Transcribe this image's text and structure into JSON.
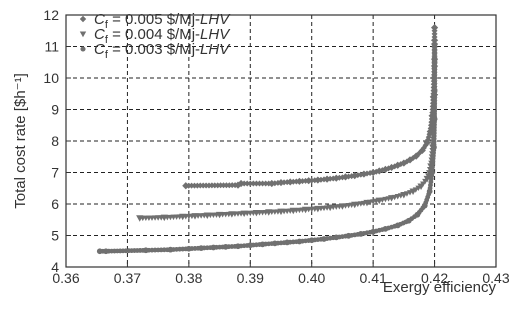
{
  "chart_data": {
    "type": "scatter",
    "xlabel": "Exergy efficiency",
    "ylabel": "Total cost rate [$h⁻¹]",
    "xlim": [
      0.36,
      0.43
    ],
    "ylim": [
      4,
      12
    ],
    "xticks": [
      {
        "v": 0.36,
        "label": "0.36"
      },
      {
        "v": 0.37,
        "label": "0.37"
      },
      {
        "v": 0.38,
        "label": "0.38"
      },
      {
        "v": 0.39,
        "label": "0.39"
      },
      {
        "v": 0.4,
        "label": "0.40"
      },
      {
        "v": 0.41,
        "label": "0.41"
      },
      {
        "v": 0.42,
        "label": "0.42"
      },
      {
        "v": 0.43,
        "label": "0.43"
      }
    ],
    "yticks": [
      {
        "v": 4,
        "label": "4"
      },
      {
        "v": 5,
        "label": "5"
      },
      {
        "v": 6,
        "label": "6"
      },
      {
        "v": 7,
        "label": "7"
      },
      {
        "v": 8,
        "label": "8"
      },
      {
        "v": 9,
        "label": "9"
      },
      {
        "v": 10,
        "label": "10"
      },
      {
        "v": 11,
        "label": "11"
      },
      {
        "v": 12,
        "label": "12"
      }
    ],
    "grid": true,
    "legend_position": "top-left",
    "marker_color": "#707070",
    "series": [
      {
        "name": "C_f = 0.005 $/Mj-LHV",
        "legend_sub": "f",
        "legend_rest": " = 0.005 $/Mj-",
        "legend_italic": "LHV",
        "marker": "diamond",
        "points": [
          [
            0.3795,
            6.58
          ],
          [
            0.388,
            6.6
          ],
          [
            0.3885,
            6.65
          ],
          [
            0.3935,
            6.65
          ],
          [
            0.395,
            6.68
          ],
          [
            0.3965,
            6.7
          ],
          [
            0.398,
            6.72
          ],
          [
            0.3995,
            6.74
          ],
          [
            0.401,
            6.76
          ],
          [
            0.4025,
            6.79
          ],
          [
            0.404,
            6.82
          ],
          [
            0.4055,
            6.86
          ],
          [
            0.407,
            6.9
          ],
          [
            0.4085,
            6.95
          ],
          [
            0.41,
            7.0
          ],
          [
            0.411,
            7.05
          ],
          [
            0.412,
            7.1
          ],
          [
            0.413,
            7.16
          ],
          [
            0.414,
            7.23
          ],
          [
            0.415,
            7.3
          ],
          [
            0.416,
            7.4
          ],
          [
            0.417,
            7.52
          ],
          [
            0.418,
            7.7
          ],
          [
            0.4188,
            7.95
          ],
          [
            0.4193,
            8.3
          ],
          [
            0.4196,
            8.8
          ],
          [
            0.4198,
            9.4
          ],
          [
            0.4199,
            10.0
          ],
          [
            0.42,
            10.6
          ],
          [
            0.42,
            11.2
          ],
          [
            0.42,
            11.6
          ]
        ]
      },
      {
        "name": "C_f = 0.004 $/Mj-LHV",
        "legend_sub": "f",
        "legend_rest": " = 0.004 $/Mj-",
        "legend_italic": "LHV",
        "marker": "triangle-down",
        "points": [
          [
            0.372,
            5.55
          ],
          [
            0.376,
            5.57
          ],
          [
            0.379,
            5.6
          ],
          [
            0.381,
            5.62
          ],
          [
            0.383,
            5.64
          ],
          [
            0.385,
            5.66
          ],
          [
            0.387,
            5.68
          ],
          [
            0.389,
            5.7
          ],
          [
            0.391,
            5.72
          ],
          [
            0.393,
            5.74
          ],
          [
            0.395,
            5.76
          ],
          [
            0.397,
            5.79
          ],
          [
            0.399,
            5.82
          ],
          [
            0.401,
            5.85
          ],
          [
            0.403,
            5.89
          ],
          [
            0.405,
            5.93
          ],
          [
            0.407,
            5.98
          ],
          [
            0.409,
            6.04
          ],
          [
            0.411,
            6.11
          ],
          [
            0.413,
            6.19
          ],
          [
            0.415,
            6.29
          ],
          [
            0.4165,
            6.4
          ],
          [
            0.4178,
            6.56
          ],
          [
            0.4188,
            6.8
          ],
          [
            0.4194,
            7.2
          ],
          [
            0.4197,
            7.8
          ],
          [
            0.4199,
            8.6
          ],
          [
            0.42,
            9.4
          ],
          [
            0.42,
            10.3
          ],
          [
            0.42,
            11.0
          ]
        ]
      },
      {
        "name": "C_f = 0.003 $/Mj-LHV",
        "legend_sub": "f",
        "legend_rest": " = 0.003 $/Mj-",
        "legend_italic": "LHV",
        "marker": "circle",
        "points": [
          [
            0.3655,
            4.5
          ],
          [
            0.3665,
            4.5
          ],
          [
            0.373,
            4.53
          ],
          [
            0.377,
            4.55
          ],
          [
            0.38,
            4.58
          ],
          [
            0.382,
            4.6
          ],
          [
            0.384,
            4.62
          ],
          [
            0.386,
            4.64
          ],
          [
            0.388,
            4.66
          ],
          [
            0.39,
            4.69
          ],
          [
            0.392,
            4.72
          ],
          [
            0.394,
            4.75
          ],
          [
            0.396,
            4.78
          ],
          [
            0.398,
            4.81
          ],
          [
            0.4,
            4.85
          ],
          [
            0.402,
            4.89
          ],
          [
            0.404,
            4.94
          ],
          [
            0.406,
            4.99
          ],
          [
            0.408,
            5.05
          ],
          [
            0.41,
            5.12
          ],
          [
            0.412,
            5.21
          ],
          [
            0.414,
            5.32
          ],
          [
            0.4158,
            5.47
          ],
          [
            0.4172,
            5.66
          ],
          [
            0.4184,
            5.95
          ],
          [
            0.4192,
            6.4
          ],
          [
            0.4196,
            7.0
          ],
          [
            0.4199,
            7.8
          ],
          [
            0.42,
            8.7
          ],
          [
            0.42,
            9.6
          ],
          [
            0.42,
            10.5
          ]
        ]
      }
    ]
  }
}
